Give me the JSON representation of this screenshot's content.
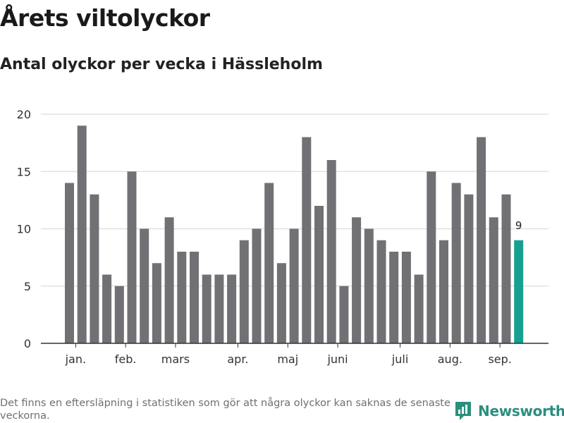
{
  "header": {
    "title": "Årets viltolyckor",
    "subtitle": "Antal olyckor per vecka i Hässleholm"
  },
  "footer": {
    "note": "Det finns en eftersläpning i statistiken som gör att några olyckor kan saknas de senaste veckorna."
  },
  "brand": {
    "name": "Newsworthy",
    "icon": "newsworthy-logo-icon",
    "color": "#2b8f7e"
  },
  "chart_data": {
    "type": "bar",
    "values": [
      14,
      19,
      13,
      6,
      5,
      15,
      10,
      7,
      11,
      8,
      8,
      6,
      6,
      6,
      9,
      10,
      14,
      7,
      10,
      18,
      12,
      16,
      5,
      11,
      10,
      9,
      8,
      8,
      6,
      15,
      9,
      14,
      13,
      18,
      11,
      13,
      9
    ],
    "month_labels": [
      "jan.",
      "feb.",
      "mars",
      "apr.",
      "maj",
      "juni",
      "juli",
      "aug.",
      "sep."
    ],
    "month_label_bar_index": [
      0.5,
      4.5,
      8.5,
      13.5,
      17.5,
      21.5,
      26.5,
      30.5,
      34.5
    ],
    "y_ticks": [
      0,
      5,
      10,
      15,
      20
    ],
    "ylim": [
      0,
      20
    ],
    "highlight_index": 36,
    "highlight_label": "9",
    "bar_color": "#717074",
    "highlight_color": "#17a090",
    "grid": true
  }
}
